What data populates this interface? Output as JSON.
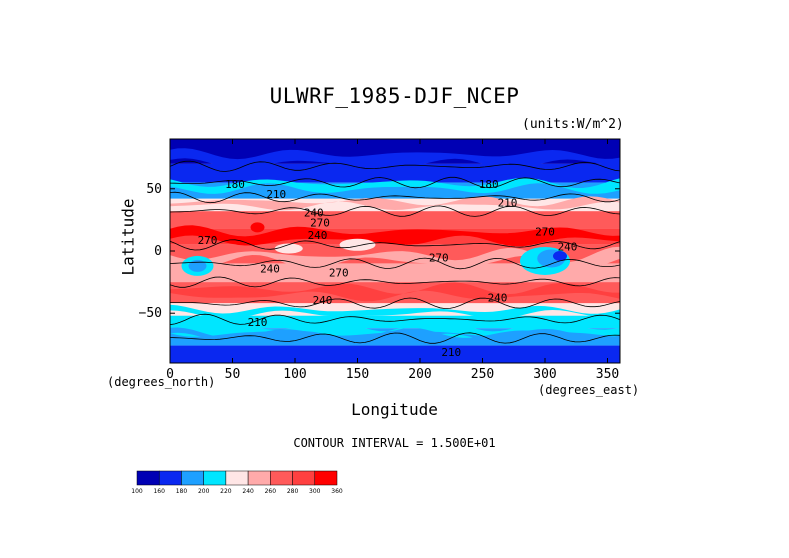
{
  "chart_data": {
    "type": "heatmap",
    "title": "ULWRF_1985-DJF_NCEP",
    "units_label": "(units:W/m^2)",
    "xlabel": "Longitude",
    "ylabel": "Latitude",
    "x_unit_label": "(degrees_east)",
    "y_unit_label": "(degrees_north)",
    "xlim": [
      0,
      360
    ],
    "ylim": [
      -90,
      90
    ],
    "x_ticks": [
      "0",
      "50",
      "100",
      "150",
      "200",
      "250",
      "300",
      "350"
    ],
    "x_tick_values": [
      0,
      50,
      100,
      150,
      200,
      250,
      300,
      350
    ],
    "y_ticks": [
      "50",
      "0",
      "−50"
    ],
    "y_tick_values": [
      50,
      0,
      -50
    ],
    "contour_interval": "CONTOUR INTERVAL = 1.500E+01",
    "contour_labels": [
      {
        "text": "180",
        "lon": 52,
        "lat": 53
      },
      {
        "text": "210",
        "lon": 85,
        "lat": 45
      },
      {
        "text": "240",
        "lon": 115,
        "lat": 30
      },
      {
        "text": "270",
        "lon": 120,
        "lat": 22
      },
      {
        "text": "240",
        "lon": 118,
        "lat": 12
      },
      {
        "text": "270",
        "lon": 30,
        "lat": 8
      },
      {
        "text": "240",
        "lon": 80,
        "lat": -15
      },
      {
        "text": "270",
        "lon": 135,
        "lat": -18
      },
      {
        "text": "270",
        "lon": 215,
        "lat": -6
      },
      {
        "text": "240",
        "lon": 122,
        "lat": -40
      },
      {
        "text": "210",
        "lon": 70,
        "lat": -58
      },
      {
        "text": "240",
        "lon": 262,
        "lat": -38
      },
      {
        "text": "270",
        "lon": 300,
        "lat": 15
      },
      {
        "text": "240",
        "lon": 318,
        "lat": 3
      },
      {
        "text": "210",
        "lon": 270,
        "lat": 38
      },
      {
        "text": "180",
        "lon": 255,
        "lat": 53
      },
      {
        "text": "210",
        "lon": 225,
        "lat": -82
      }
    ],
    "colorbar": {
      "labels": [
        "100",
        "160",
        "180",
        "200",
        "220",
        "240",
        "260",
        "280",
        "300",
        "360"
      ],
      "colors": [
        "#0000b4",
        "#0a28f0",
        "#1ea0ff",
        "#00e6ff",
        "#ffe6e6",
        "#ffaaaa",
        "#ff5a5a",
        "#ff4040",
        "#ff0000"
      ]
    },
    "field_description_levels": {
      "bands": [
        {
          "lat_from": 90,
          "lat_to": 70,
          "level": 0
        },
        {
          "lat_from": 70,
          "lat_to": 55,
          "level": 1
        },
        {
          "lat_from": 55,
          "lat_to": 42,
          "level": 2
        },
        {
          "lat_from": 42,
          "lat_to": 32,
          "level": 4
        },
        {
          "lat_from": 32,
          "lat_to": 18,
          "level": 6
        },
        {
          "lat_from": 18,
          "lat_to": 5,
          "level": 7
        },
        {
          "lat_from": 5,
          "lat_to": -10,
          "level": 6
        },
        {
          "lat_from": -10,
          "lat_to": -25,
          "level": 5
        },
        {
          "lat_from": -25,
          "lat_to": -42,
          "level": 6
        },
        {
          "lat_from": -42,
          "lat_to": -52,
          "level": 4
        },
        {
          "lat_from": -52,
          "lat_to": -62,
          "level": 3
        },
        {
          "lat_from": -62,
          "lat_to": -76,
          "level": 2
        },
        {
          "lat_from": -76,
          "lat_to": -90,
          "level": 1
        }
      ]
    }
  }
}
